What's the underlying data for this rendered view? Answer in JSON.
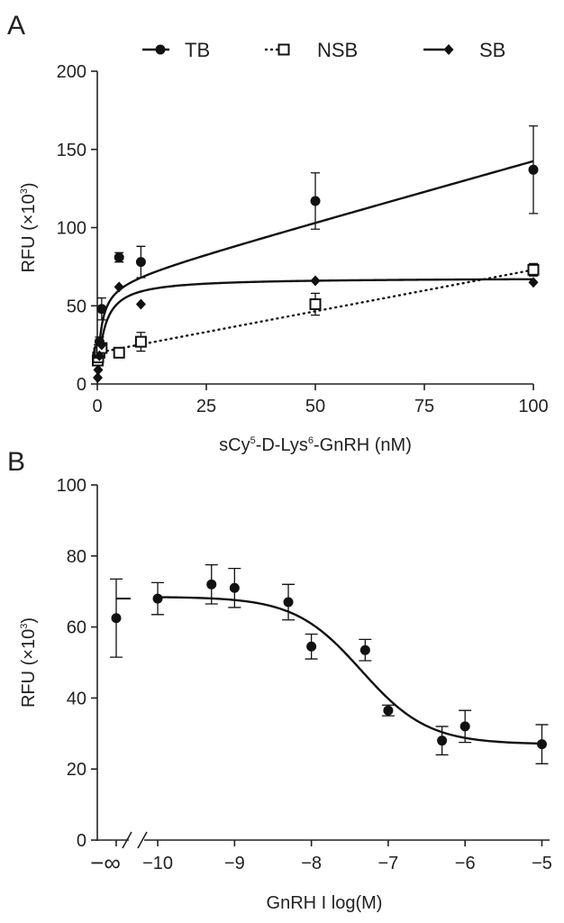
{
  "chart_data": [
    {
      "type": "scatter",
      "panel_label": "A",
      "xlabel_parts": [
        "sCy",
        "5",
        "-D-Lys",
        "6",
        "-GnRH (nM)"
      ],
      "ylabel_parts": [
        "RFU (×10",
        "3",
        ")"
      ],
      "xlim": [
        0,
        100
      ],
      "ylim": [
        0,
        200
      ],
      "xticks": [
        0,
        25,
        50,
        75,
        100
      ],
      "yticks": [
        0,
        50,
        100,
        150,
        200
      ],
      "legend_position": "top",
      "series": [
        {
          "name": "TB",
          "marker": "circle",
          "line": "solid",
          "points": [
            {
              "x": 0.1,
              "y": 18,
              "err": 3
            },
            {
              "x": 0.2,
              "y": 22,
              "err": 3
            },
            {
              "x": 0.5,
              "y": 27,
              "err": 3
            },
            {
              "x": 1,
              "y": 48,
              "err": 7
            },
            {
              "x": 5,
              "y": 81,
              "err": 3
            },
            {
              "x": 10,
              "y": 78,
              "err": 10
            },
            {
              "x": 50,
              "y": 117,
              "err": 18
            },
            {
              "x": 100,
              "y": 137,
              "err": 28
            }
          ]
        },
        {
          "name": "NSB",
          "marker": "square-open",
          "line": "dotted",
          "points": [
            {
              "x": 0.1,
              "y": 15,
              "err": 2
            },
            {
              "x": 0.2,
              "y": 17,
              "err": 2
            },
            {
              "x": 0.5,
              "y": 20,
              "err": 2
            },
            {
              "x": 1,
              "y": 23,
              "err": 2
            },
            {
              "x": 5,
              "y": 20,
              "err": 2
            },
            {
              "x": 10,
              "y": 27,
              "err": 6
            },
            {
              "x": 50,
              "y": 51,
              "err": 7
            },
            {
              "x": 100,
              "y": 73,
              "err": 4
            }
          ]
        },
        {
          "name": "SB",
          "marker": "diamond",
          "line": "solid",
          "points": [
            {
              "x": 0.1,
              "y": 4
            },
            {
              "x": 0.2,
              "y": 9
            },
            {
              "x": 0.5,
              "y": 18
            },
            {
              "x": 1,
              "y": 25
            },
            {
              "x": 5,
              "y": 62
            },
            {
              "x": 10,
              "y": 51
            },
            {
              "x": 50,
              "y": 66
            },
            {
              "x": 100,
              "y": 65
            }
          ]
        }
      ]
    },
    {
      "type": "scatter",
      "panel_label": "B",
      "xlabel": "GnRH I log(M)",
      "ylabel_parts": [
        "RFU (×10",
        "3",
        ")"
      ],
      "xlim": [
        -10.2,
        -4.9
      ],
      "ylim": [
        0,
        100
      ],
      "xticks": [
        -10,
        -9,
        -8,
        -7,
        -6,
        -5
      ],
      "xtick_labels": [
        "−10",
        "−9",
        "−8",
        "−7",
        "−6",
        "−5"
      ],
      "yticks": [
        0,
        20,
        40,
        60,
        80,
        100
      ],
      "axis_break": true,
      "infinity_tick_label": "−∞",
      "infinity_point": {
        "y": 62.5,
        "err": 11,
        "mean_bar": 68
      },
      "points": [
        {
          "x": -10,
          "y": 68,
          "err": 4.5
        },
        {
          "x": -9.3,
          "y": 72,
          "err": 5.5
        },
        {
          "x": -9,
          "y": 71,
          "err": 5.5
        },
        {
          "x": -8.3,
          "y": 67,
          "err": 5
        },
        {
          "x": -8,
          "y": 54.5,
          "err": 3.5
        },
        {
          "x": -7.3,
          "y": 53.5,
          "err": 3
        },
        {
          "x": -7,
          "y": 36.5,
          "err": 1.5
        },
        {
          "x": -6.3,
          "y": 28,
          "err": 4
        },
        {
          "x": -6,
          "y": 32,
          "err": 4.5
        },
        {
          "x": -5,
          "y": 27,
          "err": 5.5
        }
      ],
      "fit": {
        "top": 68.5,
        "bottom": 27,
        "log_ic50": -7.35,
        "hill": -1
      }
    }
  ]
}
